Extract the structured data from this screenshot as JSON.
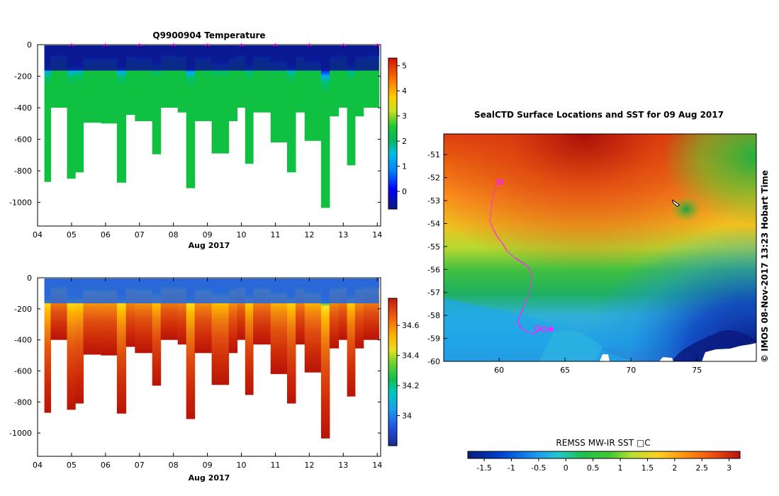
{
  "chart_data": [
    {
      "type": "heatmap",
      "title": "Q9900904  Temperature",
      "xlabel": "Aug 2017",
      "x_ticks": [
        "04",
        "05",
        "06",
        "07",
        "08",
        "09",
        "10",
        "11",
        "12",
        "13",
        "14"
      ],
      "x_range": [
        4.0,
        14.1
      ],
      "y_ticks": [
        0,
        -200,
        -400,
        -600,
        -800,
        -1000
      ],
      "ylim": [
        -1150,
        0
      ],
      "colorbar_ticks": [
        "5",
        "4",
        "3",
        "2",
        "1",
        "0"
      ],
      "colorbar_range": [
        -0.7,
        5.3
      ],
      "profile_times": [
        4.27,
        4.5,
        4.73,
        5.0,
        5.22,
        5.47,
        5.73,
        6.0,
        6.2,
        6.47,
        6.73,
        7.0,
        7.25,
        7.5,
        7.75,
        8.0,
        8.25,
        8.5,
        8.75,
        9.0,
        9.25,
        9.5,
        9.75,
        10.0,
        10.22,
        10.47,
        10.72,
        11.0,
        11.22,
        11.47,
        11.72,
        12.0,
        12.22,
        12.47,
        12.72,
        13.0,
        13.22,
        13.47,
        13.72,
        14.0
      ],
      "profile_max_depth": [
        870,
        400,
        400,
        850,
        810,
        495,
        495,
        500,
        500,
        875,
        445,
        485,
        485,
        695,
        400,
        400,
        430,
        910,
        485,
        485,
        690,
        690,
        485,
        400,
        755,
        430,
        430,
        620,
        620,
        810,
        430,
        610,
        610,
        1035,
        455,
        400,
        765,
        455,
        400,
        400
      ],
      "surface_markers": [
        5.0,
        6.0,
        7.0,
        8.0,
        9.0,
        10.0,
        11.0,
        12.0,
        13.0,
        14.0
      ]
    },
    {
      "type": "heatmap",
      "title": "",
      "xlabel": "Aug 2017",
      "x_ticks": [
        "04",
        "05",
        "06",
        "07",
        "08",
        "09",
        "10",
        "11",
        "12",
        "13",
        "14"
      ],
      "x_range": [
        4.0,
        14.1
      ],
      "y_ticks": [
        0,
        -200,
        -400,
        -600,
        -800,
        -1000
      ],
      "ylim": [
        -1150,
        0
      ],
      "colorbar_ticks": [
        "34.6",
        "34.4",
        "34.2",
        "34"
      ],
      "colorbar_range": [
        33.8,
        34.78
      ]
    },
    {
      "type": "heatmap",
      "title": "SealCTD Surface Locations and SST for 09 Aug 2017",
      "x_ticks": [
        "60",
        "65",
        "70",
        "75"
      ],
      "xlim": [
        55.8,
        79.5
      ],
      "y_ticks": [
        "-51",
        "-52",
        "-53",
        "-54",
        "-55",
        "-56",
        "-57",
        "-58",
        "-59",
        "-60"
      ],
      "ylim": [
        -60,
        -50.1
      ],
      "colorbar_label": "REMSS MW-IR SST □C",
      "colorbar_ticks": [
        "-1.5",
        "-1",
        "-0.5",
        "0",
        "0.5",
        "1",
        "1.5",
        "2",
        "2.5",
        "3"
      ],
      "colorbar_range": [
        -1.8,
        3.2
      ],
      "track_points": [
        [
          59.9,
          -52.1
        ],
        [
          60.1,
          -52.15
        ],
        [
          59.8,
          -52.3
        ],
        [
          59.5,
          -52.9
        ],
        [
          59.4,
          -53.4
        ],
        [
          59.3,
          -53.9
        ],
        [
          59.6,
          -54.3
        ],
        [
          59.9,
          -54.6
        ],
        [
          60.3,
          -54.9
        ],
        [
          60.6,
          -55.2
        ],
        [
          61.2,
          -55.5
        ],
        [
          61.5,
          -55.6
        ],
        [
          61.9,
          -55.75
        ],
        [
          62.3,
          -55.95
        ],
        [
          62.5,
          -56.3
        ],
        [
          62.4,
          -56.8
        ],
        [
          62.1,
          -57.3
        ],
        [
          61.8,
          -57.7
        ],
        [
          61.6,
          -58.0
        ],
        [
          61.4,
          -58.3
        ],
        [
          61.6,
          -58.5
        ],
        [
          62.0,
          -58.7
        ],
        [
          62.6,
          -58.8
        ],
        [
          63.0,
          -58.65
        ],
        [
          63.3,
          -58.55
        ]
      ],
      "track_markers": [
        [
          60.1,
          -52.2
        ],
        [
          62.9,
          -58.55
        ],
        [
          63.4,
          -58.6
        ]
      ],
      "highlight_marker": [
        63.9,
        -58.6
      ],
      "ship_marker": [
        73.4,
        -53.1
      ]
    }
  ],
  "side_text": "©  IMOS 08-Nov-2017 13:23 Hobart Time"
}
